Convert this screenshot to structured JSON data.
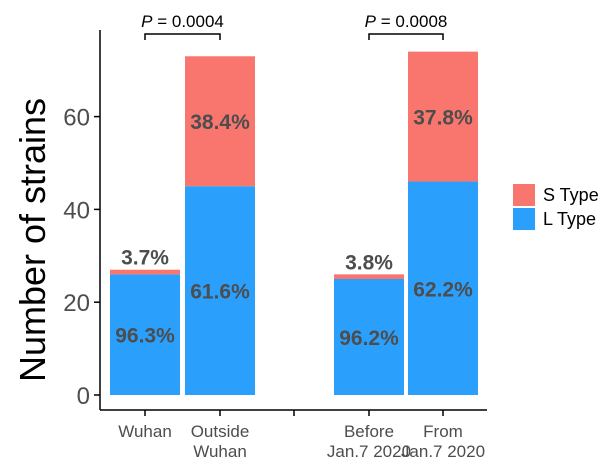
{
  "chart_data": {
    "type": "bar",
    "stacked": true,
    "title": "",
    "xlabel": "",
    "ylabel": "Number of strains",
    "ylim": [
      0,
      75
    ],
    "yticks": [
      0,
      20,
      40,
      60
    ],
    "categories": [
      {
        "lines": [
          "Wuhan"
        ],
        "group": 1
      },
      {
        "lines": [
          "Outside",
          "Wuhan"
        ],
        "group": 1
      },
      {
        "lines": [
          "Before",
          "Jan.7 2020"
        ],
        "group": 2
      },
      {
        "lines": [
          "From",
          "Jan.7 2020"
        ],
        "group": 2
      }
    ],
    "series": [
      {
        "name": "L Type",
        "color": "#2b9ffc",
        "values": [
          26,
          45,
          25,
          46
        ],
        "labels": [
          "96.3%",
          "61.6%",
          "96.2%",
          "62.2%"
        ]
      },
      {
        "name": "S Type",
        "color": "#f8766d",
        "values": [
          1,
          28,
          1,
          28
        ],
        "labels": [
          "3.7%",
          "38.4%",
          "3.8%",
          "37.8%"
        ]
      }
    ],
    "annotations": [
      {
        "italic": "P",
        "text": " = 0.0004",
        "between": [
          0,
          1
        ]
      },
      {
        "italic": "P",
        "text": " = 0.0008",
        "between": [
          2,
          3
        ]
      }
    ],
    "legend": {
      "position": "right",
      "entries": [
        "S Type",
        "L Type"
      ]
    },
    "grid": false
  }
}
